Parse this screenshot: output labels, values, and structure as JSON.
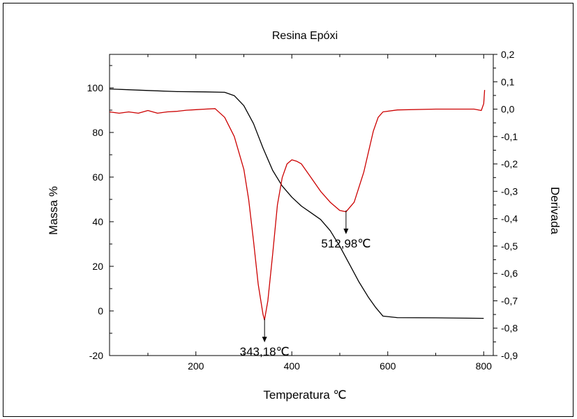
{
  "chart_data": {
    "type": "line",
    "title": "Resina Epóxi",
    "xlabel": "Temperatura ℃",
    "ylabel_left": "Massa %",
    "ylabel_right": "Derivada",
    "xlim": [
      20,
      820
    ],
    "ylim_left": [
      -20,
      115
    ],
    "ylim_right": [
      -0.9,
      0.2
    ],
    "x_ticks": [
      "200",
      "400",
      "600",
      "800"
    ],
    "y_left_ticks": [
      "-20",
      "0",
      "20",
      "40",
      "60",
      "80",
      "100"
    ],
    "y_right_ticks": [
      "-0,9",
      "-0,8",
      "-0,7",
      "-0,6",
      "-0,5",
      "-0,4",
      "-0,3",
      "-0,2",
      "-0,1",
      "0,0",
      "0,1",
      "0,2"
    ],
    "grid": false,
    "series": [
      {
        "color": "#000000",
        "axis": "left",
        "x": [
          20,
          100,
          160,
          220,
          260,
          280,
          300,
          320,
          340,
          360,
          380,
          400,
          420,
          440,
          460,
          480,
          500,
          520,
          540,
          560,
          575,
          590,
          620,
          700,
          800
        ],
        "y": [
          99.5,
          98.8,
          98.3,
          98.2,
          98.0,
          96.5,
          92,
          84,
          73,
          63,
          56,
          51,
          47,
          44,
          41,
          36,
          29,
          21,
          13,
          6,
          1.5,
          -2.3,
          -3,
          -3.1,
          -3.3
        ]
      },
      {
        "color": "#cc0000",
        "axis": "right",
        "x": [
          20,
          40,
          60,
          80,
          100,
          120,
          140,
          160,
          180,
          200,
          220,
          240,
          260,
          280,
          300,
          310,
          320,
          330,
          340,
          343,
          350,
          360,
          370,
          380,
          390,
          400,
          410,
          420,
          440,
          460,
          480,
          500,
          513,
          530,
          550,
          570,
          580,
          590,
          620,
          700,
          780,
          795,
          800,
          802
        ],
        "y": [
          -0.01,
          -0.015,
          -0.01,
          -0.015,
          -0.005,
          -0.015,
          -0.01,
          -0.008,
          -0.004,
          -0.002,
          0.0,
          0.002,
          -0.03,
          -0.1,
          -0.22,
          -0.33,
          -0.48,
          -0.64,
          -0.75,
          -0.77,
          -0.7,
          -0.53,
          -0.35,
          -0.25,
          -0.2,
          -0.185,
          -0.19,
          -0.2,
          -0.25,
          -0.3,
          -0.34,
          -0.37,
          -0.375,
          -0.34,
          -0.23,
          -0.08,
          -0.03,
          -0.01,
          -0.003,
          0.0,
          0.0,
          -0.005,
          0.02,
          0.07
        ]
      }
    ],
    "annotations": [
      {
        "text": "343,18℃",
        "x": 343.18,
        "axis": "right",
        "y": -0.77
      },
      {
        "text": "512,98℃",
        "x": 512.98,
        "axis": "right",
        "y": -0.375
      }
    ]
  }
}
